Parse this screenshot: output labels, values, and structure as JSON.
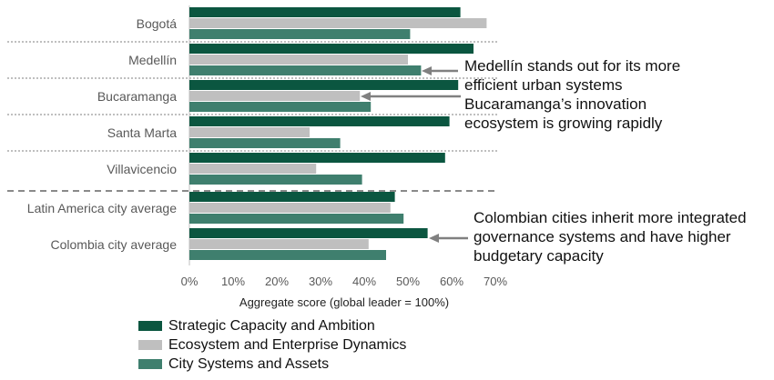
{
  "chart_data": {
    "type": "bar",
    "orientation": "horizontal",
    "categories": [
      "Bogotá",
      "Medellín",
      "Bucaramanga",
      "Santa Marta",
      "Villavicencio",
      "Latin America city average",
      "Colombia city average"
    ],
    "series": [
      {
        "name": "Strategic Capacity and Ambition",
        "color": "#0b5640",
        "values": [
          62,
          65,
          61.5,
          59.5,
          58.5,
          47,
          54.5
        ]
      },
      {
        "name": "Ecosystem and Enterprise Dynamics",
        "color": "#bfbfbf",
        "values": [
          68,
          50,
          39,
          27.5,
          29,
          46,
          41
        ]
      },
      {
        "name": "City Systems and Assets",
        "color": "#3f7f6e",
        "values": [
          50.5,
          53,
          41.5,
          34.5,
          39.5,
          49,
          45
        ]
      }
    ],
    "xlabel": "Aggregate score (global leader = 100%)",
    "ylabel": "",
    "xlim": [
      0,
      70
    ],
    "ticks": [
      "0%",
      "10%",
      "20%",
      "30%",
      "40%",
      "50%",
      "60%",
      "70%"
    ],
    "legend_position": "bottom-left",
    "annotations": [
      {
        "text": "Medellín stands out for its more efficient urban systems"
      },
      {
        "text": "Bucaramanga’s innovation ecosystem is growing rapidly"
      },
      {
        "text": "Colombian cities inherit more integrated governance systems and have higher budgetary capacity"
      }
    ]
  }
}
